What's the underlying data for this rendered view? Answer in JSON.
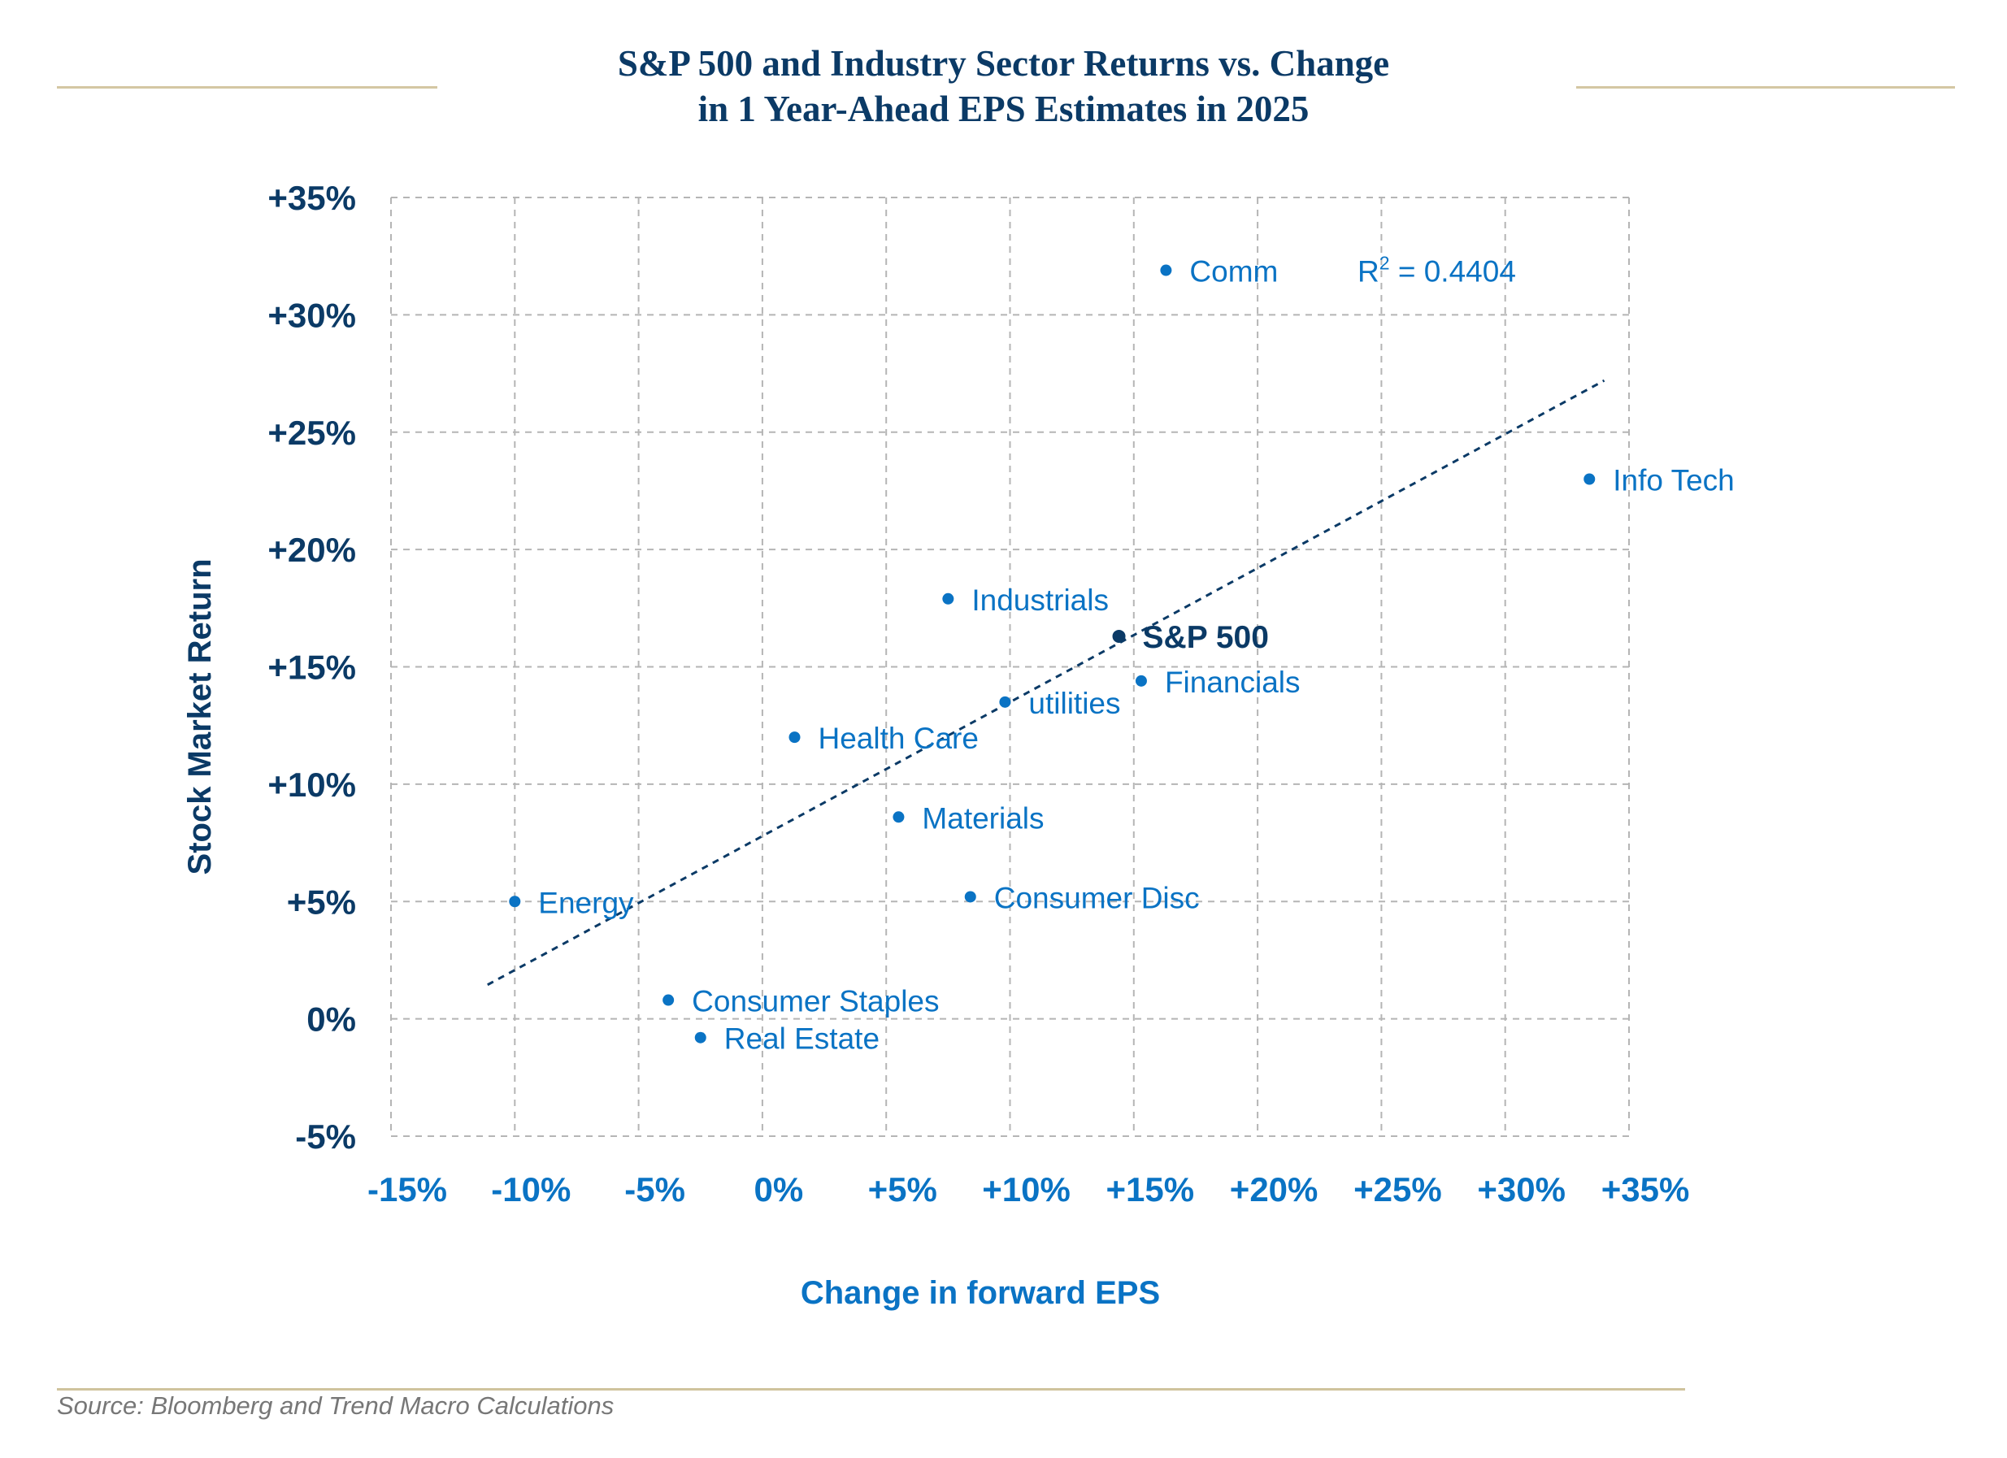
{
  "chart_data": {
    "type": "scatter",
    "title": "S&P 500 and Industry Sector Returns vs. Change in 1 Year-Ahead EPS Estimates in 2025",
    "title_lines": [
      "S&P 500 and Industry Sector Returns vs. Change",
      "in 1 Year-Ahead EPS Estimates in 2025"
    ],
    "xlabel": "Change in forward EPS",
    "ylabel": "Stock Market Return",
    "xlim": [
      -15,
      35
    ],
    "ylim": [
      -5,
      35
    ],
    "x_ticks": [
      -15,
      -10,
      -5,
      0,
      5,
      10,
      15,
      20,
      25,
      30,
      35
    ],
    "x_tick_labels": [
      "-15%",
      "-10%",
      "-5%",
      "0%",
      "+5%",
      "+10%",
      "+15%",
      "+20%",
      "+25%",
      "+30%",
      "+35%"
    ],
    "y_ticks": [
      35,
      30,
      25,
      20,
      15,
      10,
      5,
      0,
      -5
    ],
    "y_tick_labels": [
      "+35%",
      "+30%",
      "+25%",
      "+20%",
      "+15%",
      "+10%",
      "+5%",
      "0%",
      "-5%"
    ],
    "grid": true,
    "points": [
      {
        "label": "Comm",
        "x": 16.3,
        "y": 31.9,
        "highlight": false
      },
      {
        "label": "Info Tech",
        "x": 33.4,
        "y": 23.0,
        "highlight": false
      },
      {
        "label": "Industrials",
        "x": 7.5,
        "y": 17.9,
        "highlight": false
      },
      {
        "label": "S&P 500",
        "x": 14.4,
        "y": 16.3,
        "highlight": true
      },
      {
        "label": "Financials",
        "x": 15.3,
        "y": 14.4,
        "highlight": false
      },
      {
        "label": "utilities",
        "x": 9.8,
        "y": 13.5,
        "highlight": false
      },
      {
        "label": "Health Care",
        "x": 1.3,
        "y": 12.0,
        "highlight": false
      },
      {
        "label": "Materials",
        "x": 5.5,
        "y": 8.6,
        "highlight": false
      },
      {
        "label": "Consumer Disc",
        "x": 8.4,
        "y": 5.2,
        "highlight": false
      },
      {
        "label": "Energy",
        "x": -10.0,
        "y": 5.0,
        "highlight": false
      },
      {
        "label": "Consumer Staples",
        "x": -3.8,
        "y": 0.8,
        "highlight": false
      },
      {
        "label": "Real Estate",
        "x": -2.5,
        "y": -0.8,
        "highlight": false
      }
    ],
    "trendline": {
      "type": "linear",
      "x_start": -11.1,
      "y_start": 1.45,
      "x_end": 34.0,
      "y_end": 27.2,
      "style": "dotted"
    },
    "annotation": "R² = 0.4404",
    "annotation_parts": {
      "base": "R",
      "superscript": "2",
      "rest": " = 0.4404"
    },
    "annotation_position": {
      "x": 24.2,
      "y": 31.9
    },
    "colors": {
      "point": "#0a73c4",
      "highlight_point": "#0b3a66",
      "trendline": "#0b3a66",
      "grid": "#b5b5b5",
      "title": "#0b3a66"
    }
  },
  "source": "Source: Bloomberg and Trend Macro Calculations"
}
